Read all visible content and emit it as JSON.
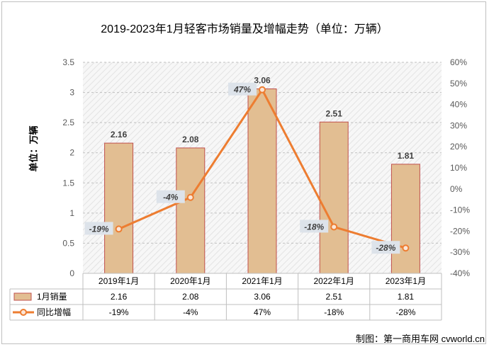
{
  "chart_data": {
    "type": "bar",
    "title": "2019-2023年1月轻客市场销量及增幅走势（单位：万辆）",
    "ylabel": "单位：万辆",
    "categories": [
      "2019年1月",
      "2020年1月",
      "2021年1月",
      "2022年1月",
      "2023年1月"
    ],
    "ylim": [
      0,
      3.5
    ],
    "y_ticks": [
      "0",
      "0.5",
      "1",
      "1.5",
      "2",
      "2.5",
      "3",
      "3.5"
    ],
    "y2lim": [
      -40,
      60
    ],
    "y2_ticks": [
      "-40%",
      "-30%",
      "-20%",
      "-10%",
      "0%",
      "10%",
      "20%",
      "30%",
      "40%",
      "50%",
      "60%"
    ],
    "grid": "horizontal dashed",
    "series": [
      {
        "name": "1月销量",
        "type": "bar",
        "axis": "left",
        "values": [
          2.16,
          2.08,
          3.06,
          2.51,
          1.81
        ],
        "labels": [
          "2.16",
          "2.08",
          "3.06",
          "2.51",
          "1.81"
        ],
        "color": "#e2be92",
        "border_color": "#c0504d"
      },
      {
        "name": "同比增幅",
        "type": "line",
        "axis": "right",
        "values": [
          -19,
          -4,
          47,
          -18,
          -28
        ],
        "labels": [
          "-19%",
          "-4%",
          "47%",
          "-18%",
          "-28%"
        ],
        "color": "#ed7d31"
      }
    ],
    "data_table": {
      "row_labels": [
        "1月销量",
        "同比增幅"
      ],
      "rows": [
        [
          "2.16",
          "2.08",
          "3.06",
          "2.51",
          "1.81"
        ],
        [
          "-19%",
          "-4%",
          "47%",
          "-18%",
          "-28%"
        ]
      ]
    }
  },
  "source": "制图：第一商用车网 cvworld.cn"
}
